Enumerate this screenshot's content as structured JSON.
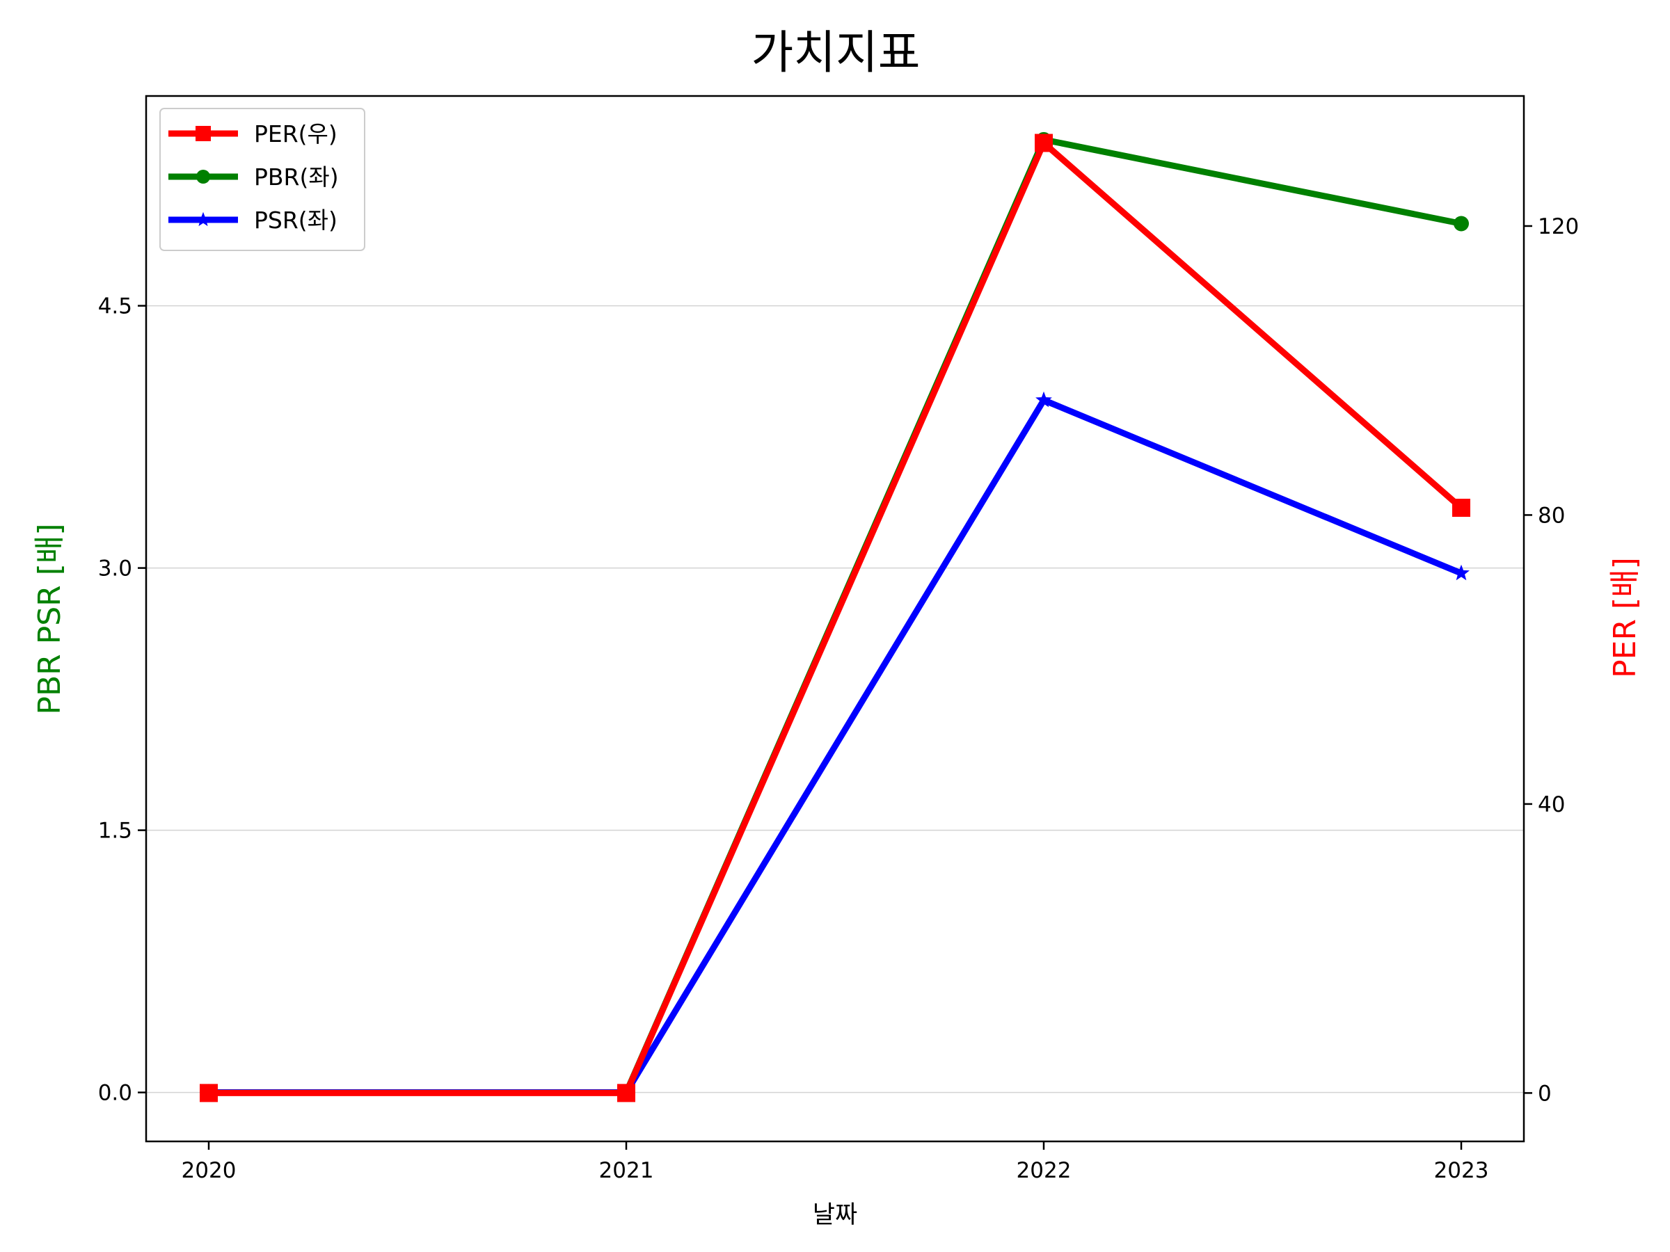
{
  "chart_data": {
    "type": "line",
    "title": "가치지표",
    "xlabel": "날짜",
    "ylabel_left": "PBR PSR [배]",
    "ylabel_right": "PER [배]",
    "categories": [
      "2020",
      "2021",
      "2022",
      "2023"
    ],
    "ylim_left": [
      -0.28,
      5.7
    ],
    "yticks_left": [
      "0.0",
      "1.5",
      "3.0",
      "4.5"
    ],
    "ylim_right": [
      -6.7,
      138
    ],
    "yticks_right": [
      "0",
      "40",
      "80",
      "120"
    ],
    "grid": "horizontal",
    "legend_position": "upper-left",
    "series": [
      {
        "name": "PER(우)",
        "axis": "right",
        "color": "#ff0000",
        "marker": "square",
        "values": [
          0,
          0,
          131.5,
          81
        ]
      },
      {
        "name": "PBR(좌)",
        "axis": "left",
        "color": "#008000",
        "marker": "circle",
        "values": [
          0,
          0,
          5.45,
          4.97
        ]
      },
      {
        "name": "PSR(좌)",
        "axis": "left",
        "color": "#0000ff",
        "marker": "star",
        "values": [
          0,
          0,
          3.96,
          2.97
        ]
      }
    ]
  }
}
